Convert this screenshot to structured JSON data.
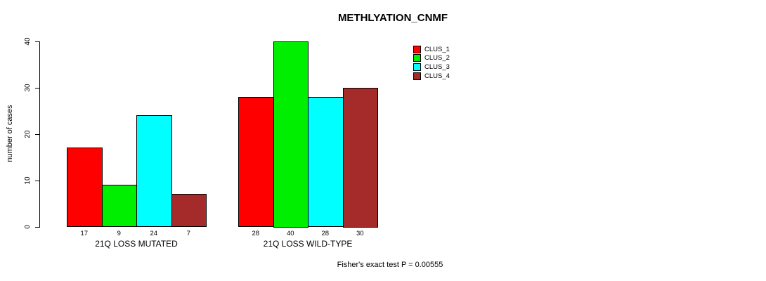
{
  "chart_data": {
    "type": "bar",
    "title": "METHLYATION_CNMF",
    "ylabel": "number of cases",
    "xlabel": "",
    "ylim": [
      0,
      40
    ],
    "yticks": [
      0,
      10,
      20,
      30,
      40
    ],
    "grid": false,
    "legend_position": "top-right",
    "categories": [
      "21Q LOSS MUTATED",
      "21Q LOSS WILD-TYPE"
    ],
    "series": [
      {
        "name": "CLUS_1",
        "color": "#ff0000",
        "values": [
          17,
          28
        ]
      },
      {
        "name": "CLUS_2",
        "color": "#00ee00",
        "values": [
          9,
          40
        ]
      },
      {
        "name": "CLUS_3",
        "color": "#00ffff",
        "values": [
          24,
          28
        ]
      },
      {
        "name": "CLUS_4",
        "color": "#a52a2a",
        "values": [
          7,
          30
        ]
      }
    ],
    "bar_value_labels": [
      [
        17,
        9,
        24,
        7
      ],
      [
        28,
        40,
        28,
        30
      ]
    ],
    "annotation": "Fisher's exact test P = 0.00555"
  }
}
